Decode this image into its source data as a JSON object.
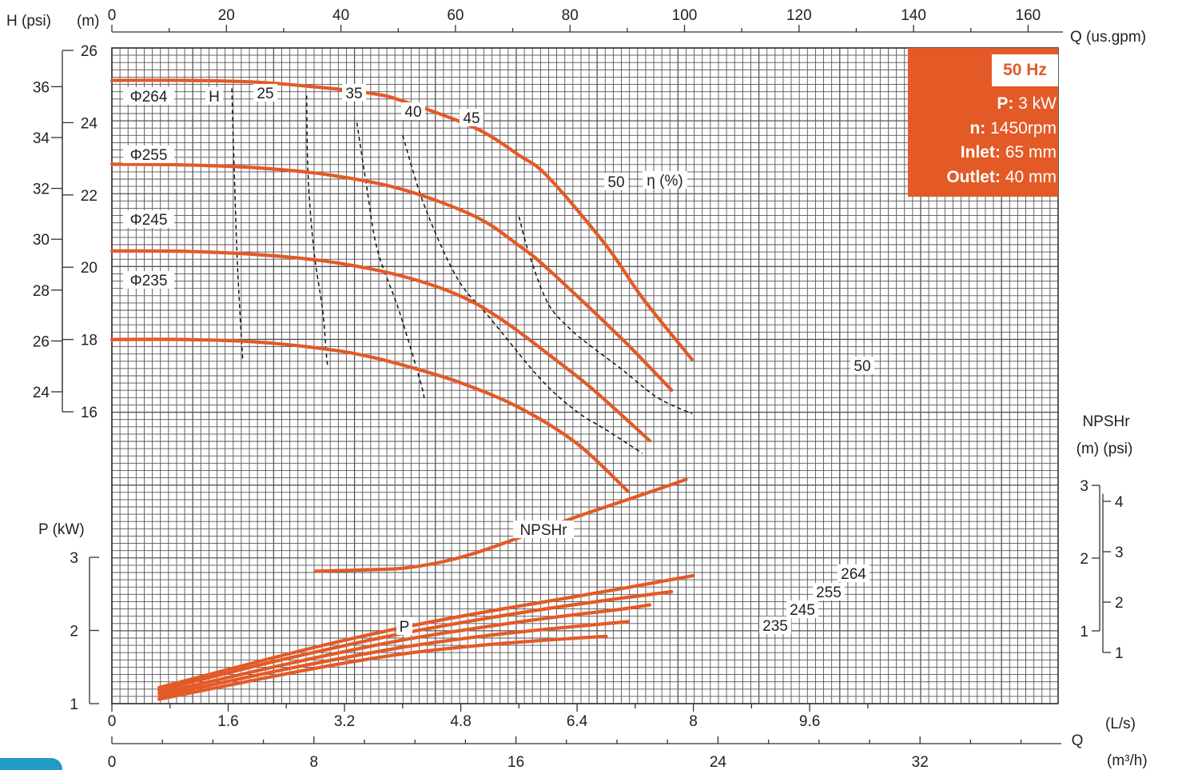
{
  "chart_data": {
    "type": "line",
    "title": "",
    "info_box": {
      "frequency": "50 Hz",
      "rows": [
        {
          "key": "P:",
          "value": "3 kW"
        },
        {
          "key": "n:",
          "value": "1450rpm"
        },
        {
          "key": "Inlet:",
          "value": "65 mm"
        },
        {
          "key": "Outlet:",
          "value": "40 mm"
        }
      ]
    },
    "axes": {
      "q_gpm": {
        "label": "Q (us.gpm)",
        "ticks": [
          "0",
          "20",
          "40",
          "60",
          "80",
          "100",
          "120",
          "140",
          "160"
        ],
        "range": [
          0,
          165
        ]
      },
      "h_m": {
        "label": "(m)",
        "ticks": [
          "16",
          "18",
          "20",
          "22",
          "24",
          "26"
        ],
        "range": [
          16,
          26
        ]
      },
      "h_psi": {
        "label": "H (psi)",
        "ticks": [
          "24",
          "26",
          "28",
          "30",
          "32",
          "34",
          "36"
        ]
      },
      "p_kw": {
        "label": "P (kW)",
        "ticks": [
          "1",
          "2",
          "3"
        ],
        "range": [
          1,
          3
        ]
      },
      "npshr_m": {
        "label": "NPSHr",
        "unit_label": "(m)  (psi)",
        "ticks": [
          "1",
          "2",
          "3"
        ],
        "range": [
          1,
          3
        ]
      },
      "npshr_psi": {
        "ticks": [
          "1",
          "2",
          "3",
          "4"
        ]
      },
      "q_ls": {
        "label": "(L/s)",
        "ticks": [
          "0",
          "1.6",
          "3.2",
          "4.8",
          "6.4",
          "8",
          "9.6"
        ],
        "range": [
          0,
          10.4
        ]
      },
      "q_m3h": {
        "label": "(m³/h)",
        "q_letter": "Q",
        "ticks": [
          "0",
          "8",
          "16",
          "24",
          "32"
        ],
        "range": [
          0,
          37.4
        ]
      }
    },
    "head_curves": [
      {
        "name": "Φ264",
        "q_ls": [
          0,
          1,
          2,
          3,
          3.6,
          4,
          5,
          5.6,
          6,
          6.8,
          7.3,
          7.98
        ],
        "h_m": [
          25.17,
          25.17,
          25.12,
          24.95,
          24.8,
          24.6,
          23.85,
          23.1,
          22.5,
          20.6,
          19.15,
          17.45
        ]
      },
      {
        "name": "Φ255",
        "q_ls": [
          0,
          1,
          2,
          3,
          4,
          5,
          5.6,
          6,
          7,
          7.7
        ],
        "h_m": [
          22.85,
          22.83,
          22.75,
          22.55,
          22.15,
          21.4,
          20.6,
          19.95,
          18.05,
          16.6
        ]
      },
      {
        "name": "Φ245",
        "q_ls": [
          0,
          1,
          2,
          3,
          4,
          4.8,
          5.4,
          6,
          6.6,
          7.4
        ],
        "h_m": [
          20.45,
          20.44,
          20.35,
          20.15,
          19.75,
          19.2,
          18.5,
          17.6,
          16.65,
          15.2
        ]
      },
      {
        "name": "Φ235",
        "q_ls": [
          0,
          1,
          2,
          3,
          3.6,
          4.2,
          4.8,
          5.6,
          6.4,
          7.1
        ],
        "h_m": [
          18.0,
          18.0,
          17.93,
          17.72,
          17.5,
          17.18,
          16.8,
          16.12,
          15.12,
          13.8
        ]
      }
    ],
    "efficiency_curves": [
      {
        "name": "25",
        "q_ls": [
          1.65,
          1.68,
          1.72,
          1.76,
          1.8
        ],
        "h_m": [
          24.95,
          22.85,
          20.45,
          18.8,
          17.45
        ]
      },
      {
        "name": "35",
        "q_ls": [
          2.68,
          2.7,
          2.78,
          2.9,
          2.95,
          2.97
        ],
        "h_m": [
          24.75,
          22.5,
          20.45,
          18.8,
          17.6,
          17.25
        ]
      },
      {
        "name": "40",
        "q_ls": [
          3.37,
          3.5,
          3.65,
          3.95,
          4.25,
          4.3
        ],
        "h_m": [
          24.0,
          22.3,
          20.5,
          18.8,
          16.8,
          16.3
        ]
      },
      {
        "name": "45",
        "q_ls": [
          4.0,
          4.3,
          4.75,
          5.2,
          5.9,
          6.4,
          6.8,
          7.3
        ],
        "h_m": [
          23.65,
          21.7,
          19.7,
          18.6,
          16.9,
          16.0,
          15.5,
          14.85
        ]
      },
      {
        "name": "50",
        "q_ls": [
          5.6,
          5.75,
          6.0,
          6.3,
          6.6,
          7.0,
          7.5,
          7.98
        ],
        "h_m": [
          21.4,
          20.3,
          19.0,
          18.3,
          17.8,
          17.2,
          16.4,
          15.95
        ]
      }
    ],
    "efficiency_axis_label": "η (%)",
    "npshr_curve": {
      "name": "NPSHr",
      "q_ls": [
        2.8,
        3.5,
        4.0,
        4.5,
        5.0,
        5.6,
        6.4,
        7.2,
        7.9
      ],
      "npshr_m": [
        1.82,
        1.84,
        1.86,
        1.94,
        2.07,
        2.28,
        2.57,
        2.84,
        3.08
      ]
    },
    "power_curves": [
      {
        "name": "264",
        "q_ls": [
          0.65,
          2,
          3,
          4,
          5,
          6,
          7,
          8.0
        ],
        "p_kw": [
          1.22,
          1.57,
          1.82,
          2.04,
          2.23,
          2.4,
          2.57,
          2.75
        ]
      },
      {
        "name": "255",
        "q_ls": [
          0.65,
          2,
          3,
          4,
          5,
          6,
          7,
          7.7
        ],
        "p_kw": [
          1.18,
          1.52,
          1.75,
          1.96,
          2.14,
          2.3,
          2.44,
          2.53
        ]
      },
      {
        "name": "245",
        "q_ls": [
          0.65,
          2,
          3,
          4,
          5,
          6,
          7,
          7.4
        ],
        "p_kw": [
          1.14,
          1.45,
          1.67,
          1.87,
          2.03,
          2.17,
          2.29,
          2.35
        ]
      },
      {
        "name": "235",
        "q_ls": [
          0.65,
          2,
          3,
          4,
          5,
          6,
          7.1
        ],
        "p_kw": [
          1.1,
          1.39,
          1.59,
          1.77,
          1.91,
          2.02,
          2.12
        ]
      },
      {
        "name": "",
        "q_ls": [
          0.65,
          2,
          3,
          4,
          5,
          6,
          6.8
        ],
        "p_kw": [
          1.06,
          1.33,
          1.52,
          1.68,
          1.79,
          1.87,
          1.92
        ]
      }
    ],
    "power_label": "P",
    "line_color": "#e35a27",
    "grid": true
  }
}
